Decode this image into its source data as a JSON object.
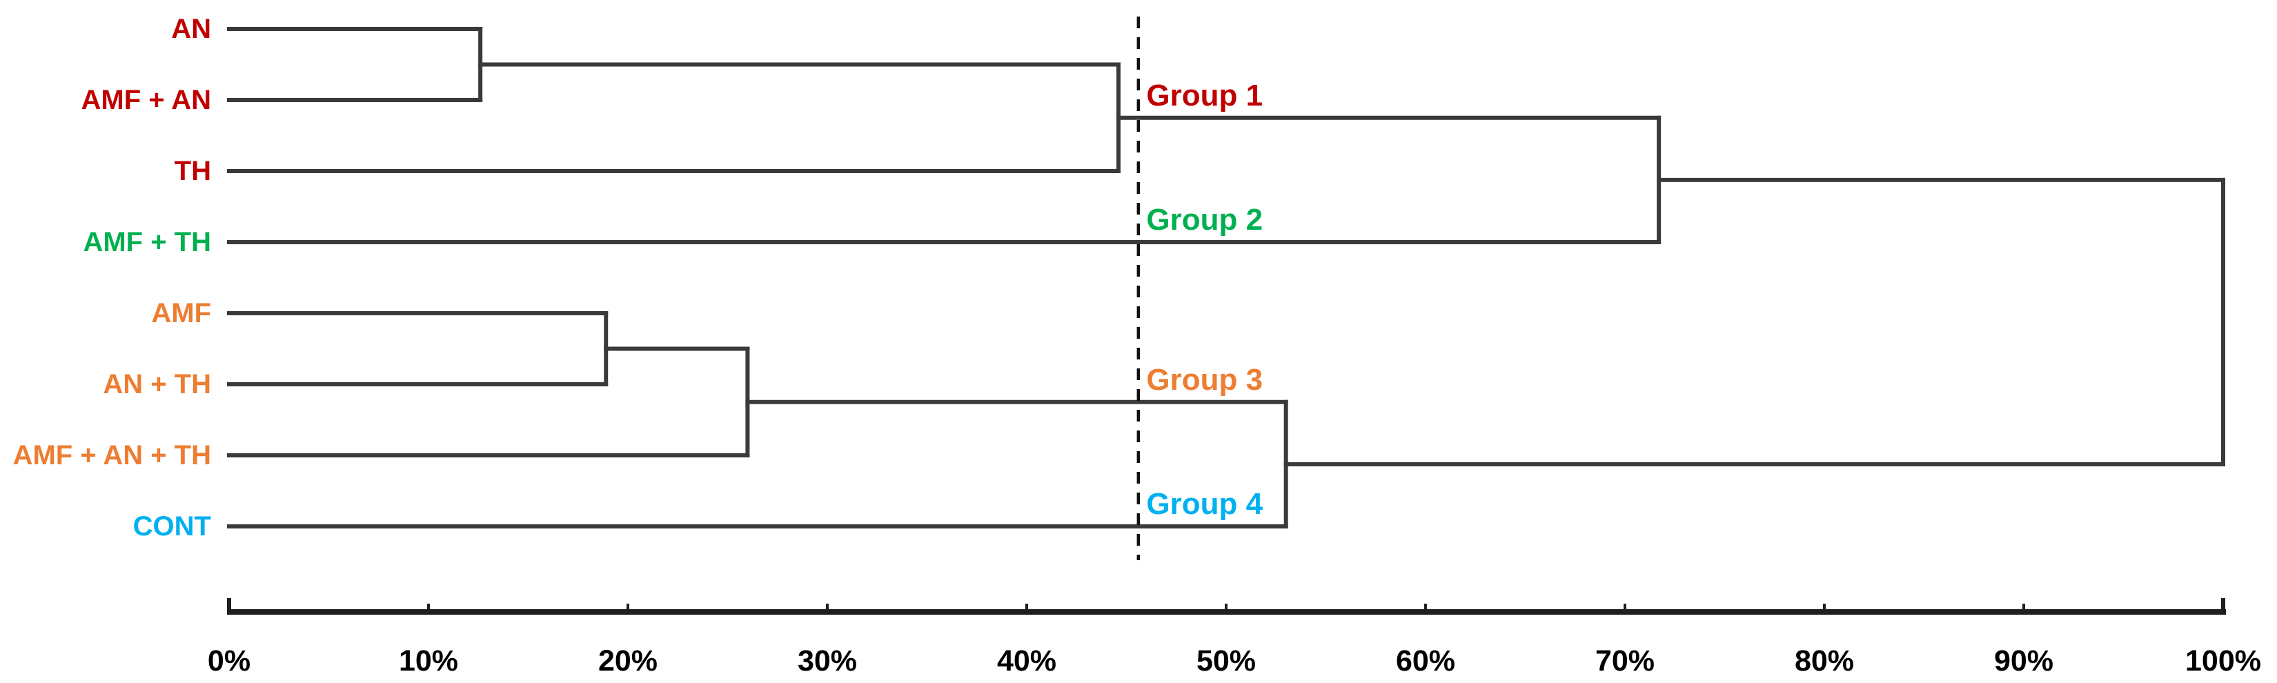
{
  "chart_data": {
    "type": "dendrogram",
    "orientation": "horizontal",
    "title": "",
    "axis": {
      "unit": "%",
      "min": 0,
      "max": 100,
      "tick_step": 10,
      "tick_labels": [
        "0%",
        "10%",
        "20%",
        "30%",
        "40%",
        "50%",
        "60%",
        "70%",
        "80%",
        "90%",
        "100%"
      ]
    },
    "leaves": [
      {
        "label": "AN",
        "color": "#C00000"
      },
      {
        "label": "AMF + AN",
        "color": "#C00000"
      },
      {
        "label": "TH",
        "color": "#C00000"
      },
      {
        "label": "AMF + TH",
        "color": "#00B050"
      },
      {
        "label": "AMF",
        "color": "#ED7D31"
      },
      {
        "label": "AN + TH",
        "color": "#ED7D31"
      },
      {
        "label": "AMF + AN + TH",
        "color": "#ED7D31"
      },
      {
        "label": "CONT",
        "color": "#00B0F0"
      }
    ],
    "tree": {
      "id": "root",
      "height_pct": 100,
      "children": [
        {
          "id": "g12",
          "height_pct": 71.7,
          "children": [
            {
              "id": "g1",
              "height_pct": 44.6,
              "children": [
                {
                  "id": "m1",
                  "height_pct": 12.6,
                  "children": [
                    {
                      "leaf": "AN"
                    },
                    {
                      "leaf": "AMF + AN"
                    }
                  ]
                },
                {
                  "leaf": "TH"
                }
              ]
            },
            {
              "leaf": "AMF + TH"
            }
          ]
        },
        {
          "id": "g34",
          "height_pct": 53.0,
          "children": [
            {
              "id": "g3",
              "height_pct": 26.0,
              "children": [
                {
                  "id": "m2",
                  "height_pct": 18.9,
                  "children": [
                    {
                      "leaf": "AMF"
                    },
                    {
                      "leaf": "AN + TH"
                    }
                  ]
                },
                {
                  "leaf": "AMF + AN + TH"
                }
              ]
            },
            {
              "leaf": "CONT"
            }
          ]
        }
      ]
    },
    "threshold_line": {
      "position_pct": 45.6,
      "style": "dashed",
      "color": "#111111"
    },
    "groups": [
      {
        "label": "Group 1",
        "color": "#C00000",
        "anchor": "node:g1",
        "label_x_pct": 46.0
      },
      {
        "label": "Group 2",
        "color": "#00B050",
        "anchor": "leaf:AMF + TH",
        "label_x_pct": 46.0
      },
      {
        "label": "Group 3",
        "color": "#ED7D31",
        "anchor": "node:g3",
        "label_x_pct": 46.0
      },
      {
        "label": "Group 4",
        "color": "#00B0F0",
        "anchor": "leaf:CONT",
        "label_x_pct": 46.0
      }
    ],
    "branch_color": "#3a3a3a",
    "axis_color": "#1f1f1f",
    "tick_label_color": "#000000",
    "legend_position": "none",
    "grid": false
  }
}
